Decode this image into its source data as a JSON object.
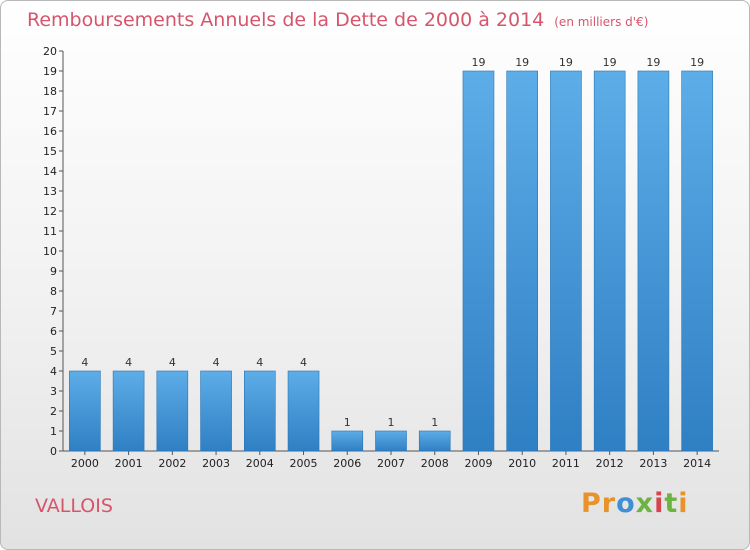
{
  "chart_data": {
    "type": "bar",
    "title": "Remboursements Annuels de la Dette de 2000 à 2014",
    "subtitle": "(en milliers d'€)",
    "categories": [
      "2000",
      "2001",
      "2002",
      "2003",
      "2004",
      "2005",
      "2006",
      "2007",
      "2008",
      "2009",
      "2010",
      "2011",
      "2012",
      "2013",
      "2014"
    ],
    "values": [
      4,
      4,
      4,
      4,
      4,
      4,
      1,
      1,
      1,
      19,
      19,
      19,
      19,
      19,
      19
    ],
    "ylim": [
      0,
      20
    ],
    "yticks": [
      0,
      1,
      2,
      3,
      4,
      5,
      6,
      7,
      8,
      9,
      10,
      11,
      12,
      13,
      14,
      15,
      16,
      17,
      18,
      19,
      20
    ],
    "grid": false,
    "bar_color": "#3a8fd6"
  },
  "location": "VALLOIS",
  "logo": {
    "text": "Proxiti",
    "colors": [
      "#e8932a",
      "#3f8fd2",
      "#6cb33f",
      "#d6454f"
    ]
  }
}
